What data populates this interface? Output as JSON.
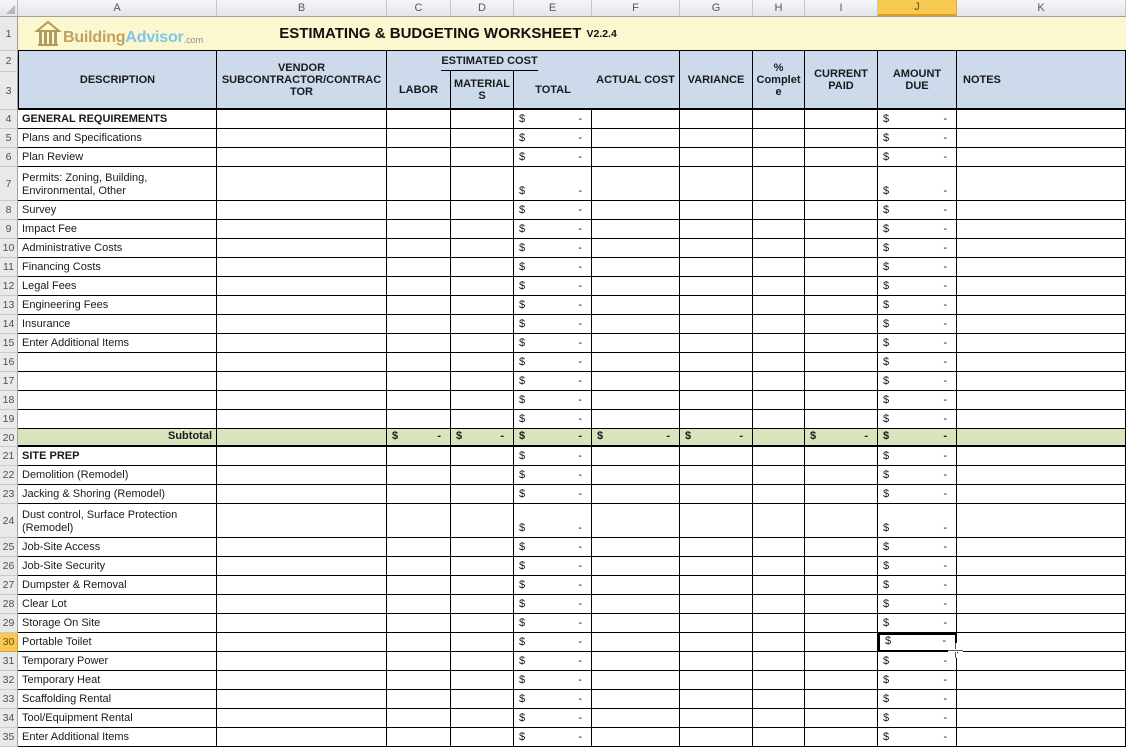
{
  "app_type": "spreadsheet",
  "colors": {
    "title_band_fill": "#FBF7CE",
    "table_header_fill": "#CDDAEC",
    "subtotal_fill": "#D7E4BC",
    "selection_highlight": "#F8C952",
    "grid_line": "#000000"
  },
  "column_headers": [
    "A",
    "B",
    "C",
    "D",
    "E",
    "F",
    "G",
    "H",
    "I",
    "J",
    "K"
  ],
  "row_numbers_top": [
    "1",
    "2",
    "3"
  ],
  "title_bar": {
    "logo": {
      "icon": "building-columns-icon",
      "building": "Building",
      "advisor": "Advisor",
      "tld": ".com"
    },
    "title": "ESTIMATING & BUDGETING WORKSHEET",
    "version": "V2.2.4"
  },
  "table_header": {
    "description": "DESCRIPTION",
    "vendor": "VENDOR SUBCONTRACTOR/CONTRACTOR",
    "estimated_cost": "ESTIMATED COST",
    "labor": "LABOR",
    "materials": "MATERIALS",
    "total": "TOTAL",
    "actual_cost": "ACTUAL COST",
    "variance": "VARIANCE",
    "pct_complete": "% Complete",
    "current_paid": "CURRENT PAID",
    "amount_due": "AMOUNT DUE",
    "notes": "NOTES"
  },
  "money_format": {
    "currency": "$",
    "zero": "-"
  },
  "defaults": {
    "money_columns": [
      "E",
      "J"
    ]
  },
  "selection": {
    "row": "30",
    "column": "J"
  },
  "rows": [
    {
      "n": "4",
      "desc": "GENERAL REQUIREMENTS",
      "section": true
    },
    {
      "n": "5",
      "desc": "Plans and Specifications"
    },
    {
      "n": "6",
      "desc": "Plan Review"
    },
    {
      "n": "7",
      "desc": "Permits: Zoning, Building, Environmental, Other",
      "tall": true
    },
    {
      "n": "8",
      "desc": "Survey"
    },
    {
      "n": "9",
      "desc": "Impact Fee"
    },
    {
      "n": "10",
      "desc": "Administrative Costs"
    },
    {
      "n": "11",
      "desc": "Financing Costs"
    },
    {
      "n": "12",
      "desc": "Legal Fees"
    },
    {
      "n": "13",
      "desc": "Engineering Fees"
    },
    {
      "n": "14",
      "desc": "Insurance"
    },
    {
      "n": "15",
      "desc": "Enter Additional Items"
    },
    {
      "n": "16",
      "desc": ""
    },
    {
      "n": "17",
      "desc": ""
    },
    {
      "n": "18",
      "desc": ""
    },
    {
      "n": "19",
      "desc": ""
    },
    {
      "n": "20",
      "desc": "Subtotal",
      "subtotal": true,
      "money": [
        "C",
        "D",
        "E",
        "F",
        "G",
        "I",
        "J"
      ]
    },
    {
      "n": "21",
      "desc": "SITE PREP",
      "section": true
    },
    {
      "n": "22",
      "desc": "Demolition (Remodel)"
    },
    {
      "n": "23",
      "desc": "Jacking & Shoring (Remodel)"
    },
    {
      "n": "24",
      "desc": "Dust control, Surface Protection (Remodel)",
      "tall": true
    },
    {
      "n": "25",
      "desc": "Job-Site Access"
    },
    {
      "n": "26",
      "desc": "Job-Site Security"
    },
    {
      "n": "27",
      "desc": "Dumpster & Removal"
    },
    {
      "n": "28",
      "desc": "Clear Lot"
    },
    {
      "n": "29",
      "desc": "Storage On Site"
    },
    {
      "n": "30",
      "desc": "Portable Toilet"
    },
    {
      "n": "31",
      "desc": "Temporary Power"
    },
    {
      "n": "32",
      "desc": "Temporary Heat"
    },
    {
      "n": "33",
      "desc": "Scaffolding Rental"
    },
    {
      "n": "34",
      "desc": "Tool/Equipment Rental"
    },
    {
      "n": "35",
      "desc": "Enter Additional Items",
      "partial": true
    }
  ]
}
